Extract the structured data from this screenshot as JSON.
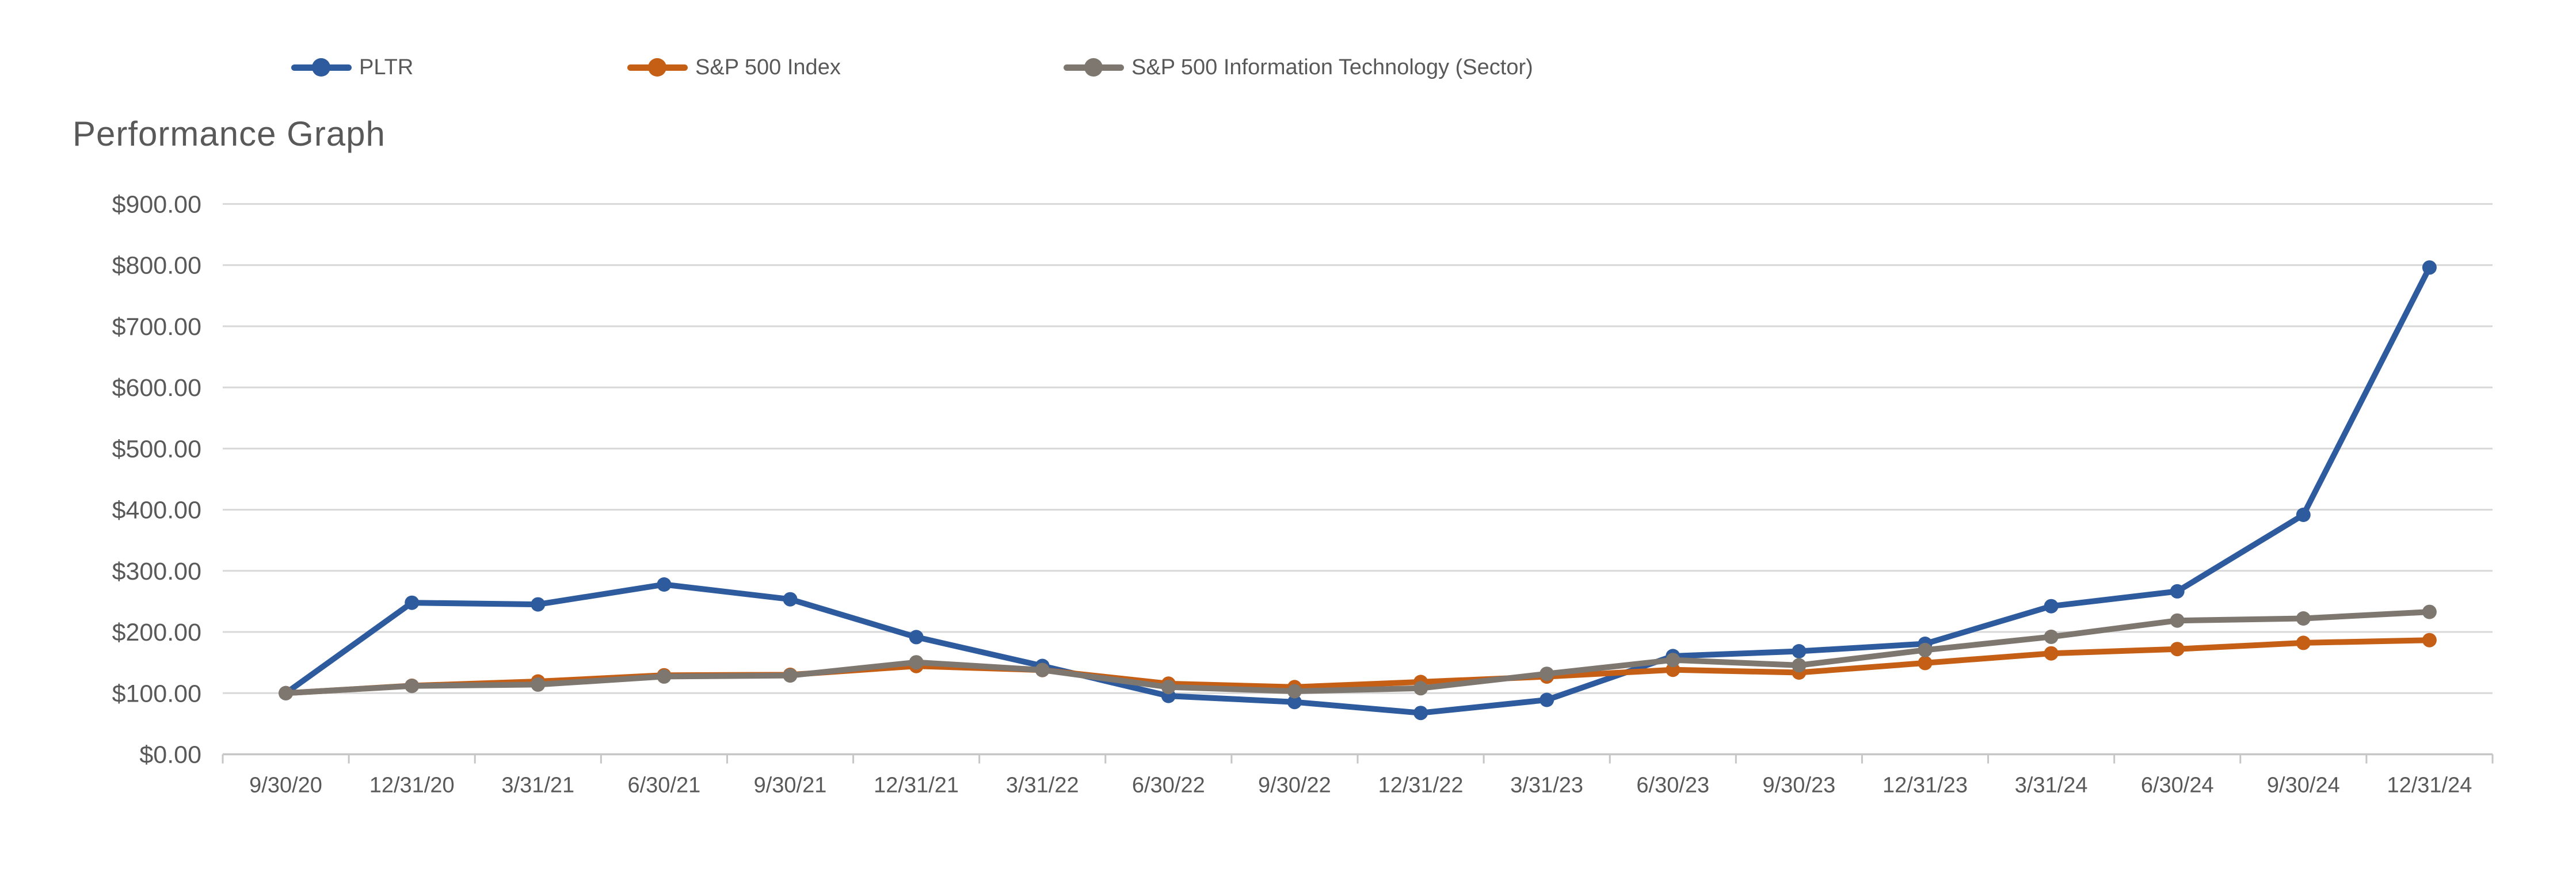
{
  "title": "Performance Graph",
  "colors": {
    "pltr_blue": "#2E5B9D",
    "sp500_orange": "#C55F16",
    "sp500it_gray": "#7E7770",
    "gridline": "#D8D8D8",
    "axis_line": "#C6C6C6",
    "label_text": "#595959",
    "background": "#FFFFFF"
  },
  "chart_data": {
    "type": "line",
    "title": "Performance Graph",
    "xlabel": "",
    "ylabel": "",
    "grid": "horizontal-major",
    "legend_position": "top",
    "marker": "circle",
    "ylim": [
      0,
      900
    ],
    "y_tick_step": 100,
    "y_tick_format": "$0.00",
    "y_tick_labels": [
      "$0.00",
      "$100.00",
      "$200.00",
      "$300.00",
      "$400.00",
      "$500.00",
      "$600.00",
      "$700.00",
      "$800.00",
      "$900.00"
    ],
    "x_tick_style": "ticks-between-categories",
    "categories": [
      "9/30/20",
      "12/31/20",
      "3/31/21",
      "6/30/21",
      "9/30/21",
      "12/31/21",
      "3/31/22",
      "6/30/22",
      "9/30/22",
      "12/31/22",
      "3/31/23",
      "6/30/23",
      "9/30/23",
      "12/31/23",
      "3/31/24",
      "6/30/24",
      "9/30/24",
      "12/31/24"
    ],
    "series": [
      {
        "name": "PLTR",
        "color": "#2E5B9D",
        "values": [
          100.0,
          247.89,
          245.16,
          277.68,
          253.47,
          191.68,
          144.53,
          95.47,
          85.47,
          67.58,
          88.95,
          160.63,
          168.53,
          180.74,
          242.21,
          266.53,
          391.58,
          796.11
        ]
      },
      {
        "name": "S&P 500 Index",
        "color": "#C55F16",
        "values": [
          100.0,
          112.15,
          119.07,
          129.25,
          130.0,
          144.34,
          137.7,
          115.53,
          109.89,
          118.2,
          127.06,
          138.17,
          133.65,
          149.27,
          165.03,
          172.1,
          182.24,
          186.63
        ]
      },
      {
        "name": "S&P 500 Information Technology (Sector)",
        "color": "#7E7770",
        "values": [
          100.0,
          111.81,
          114.01,
          127.19,
          128.89,
          150.4,
          137.82,
          109.93,
          103.12,
          108.01,
          131.58,
          154.21,
          145.51,
          170.49,
          192.12,
          218.65,
          222.17,
          232.92
        ]
      }
    ]
  }
}
